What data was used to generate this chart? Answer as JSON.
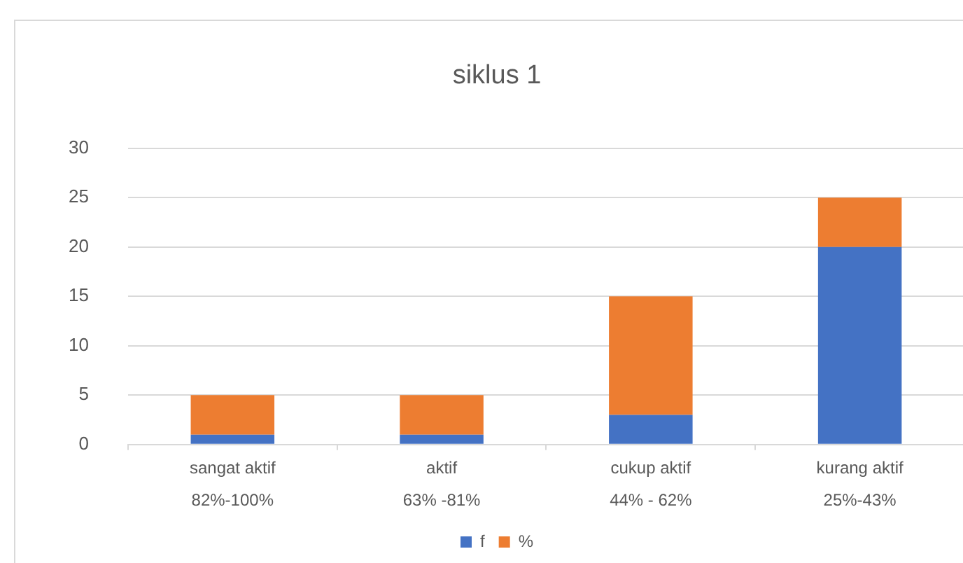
{
  "chart_data": {
    "type": "bar",
    "title": "siklus 1",
    "stacked": true,
    "categories": [
      "sangat aktif\n82%-100%",
      "aktif\n63% -81%",
      "cukup aktif\n44% - 62%",
      "kurang aktif\n25%-43%"
    ],
    "series": [
      {
        "name": "f",
        "color": "#4472c4",
        "values": [
          1,
          1,
          3,
          20
        ]
      },
      {
        "name": "%",
        "color": "#ed7d31",
        "values": [
          4,
          4,
          12,
          5
        ]
      }
    ],
    "ylim": [
      0,
      30
    ],
    "yticks": [
      0,
      5,
      10,
      15,
      20,
      25,
      30
    ],
    "grid": "y",
    "legend": "bottom"
  }
}
